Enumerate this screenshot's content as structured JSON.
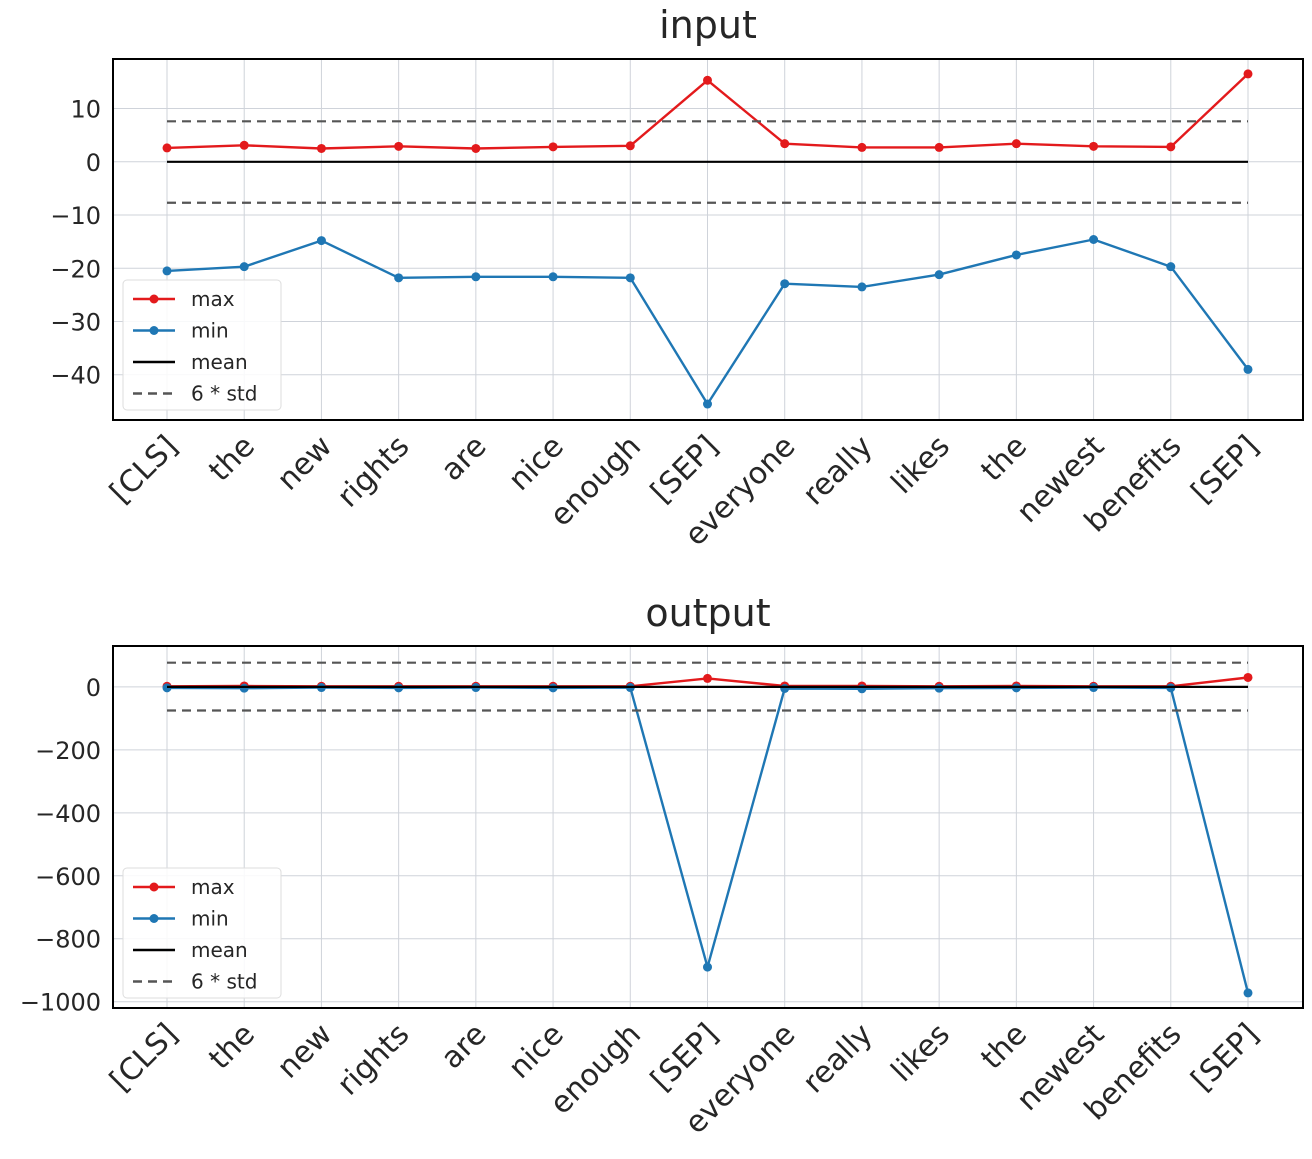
{
  "chart_data": [
    {
      "type": "line",
      "title": "input",
      "categories": [
        "[CLS]",
        "the",
        "new",
        "rights",
        "are",
        "nice",
        "enough",
        "[SEP]",
        "everyone",
        "really",
        "likes",
        "the",
        "newest",
        "benefits",
        "[SEP]"
      ],
      "series": [
        {
          "name": "max",
          "color": "#e31a1c",
          "values": [
            2.6,
            3.1,
            2.5,
            2.9,
            2.5,
            2.8,
            3.0,
            15.3,
            3.4,
            2.7,
            2.7,
            3.4,
            2.9,
            2.8,
            16.5
          ]
        },
        {
          "name": "min",
          "color": "#1f77b4",
          "values": [
            -20.5,
            -19.7,
            -14.8,
            -21.8,
            -21.6,
            -21.6,
            -21.8,
            -45.5,
            -22.9,
            -23.5,
            -21.2,
            -17.5,
            -14.6,
            -19.7,
            -39.0
          ]
        },
        {
          "name": "mean",
          "color": "#000000",
          "values": [
            0,
            0,
            0,
            0,
            0,
            0,
            0,
            0,
            0,
            0,
            0,
            0,
            0,
            0,
            0
          ]
        },
        {
          "name": "6 * std",
          "color": "#555555",
          "dashed": true,
          "band": [
            -7.7,
            7.6
          ]
        }
      ],
      "yticks": [
        10,
        0,
        -10,
        -20,
        -30,
        -40
      ],
      "ytick_labels": [
        "10",
        "0",
        "−10",
        "−20",
        "−30",
        "−40"
      ],
      "ylim": [
        -48.5,
        19.3
      ],
      "xlabel": "",
      "ylabel": "",
      "legend": {
        "position": "lower-left",
        "labels": [
          "max",
          "min",
          "mean",
          "6 * std"
        ]
      }
    },
    {
      "type": "line",
      "title": "output",
      "categories": [
        "[CLS]",
        "the",
        "new",
        "rights",
        "are",
        "nice",
        "enough",
        "[SEP]",
        "everyone",
        "really",
        "likes",
        "the",
        "newest",
        "benefits",
        "[SEP]"
      ],
      "series": [
        {
          "name": "max",
          "color": "#e31a1c",
          "values": [
            2,
            3,
            2,
            2,
            2,
            2,
            2,
            27,
            3,
            3,
            2,
            3,
            2,
            2,
            30
          ]
        },
        {
          "name": "min",
          "color": "#1f77b4",
          "values": [
            -3,
            -4,
            -2,
            -3,
            -2,
            -3,
            -2,
            -890,
            -5,
            -6,
            -4,
            -3,
            -2,
            -3,
            -972
          ]
        },
        {
          "name": "mean",
          "color": "#000000",
          "values": [
            0,
            0,
            0,
            0,
            0,
            0,
            0,
            0,
            0,
            0,
            0,
            0,
            0,
            0,
            0
          ]
        },
        {
          "name": "6 * std",
          "color": "#555555",
          "dashed": true,
          "band": [
            -75,
            77
          ]
        }
      ],
      "yticks": [
        0,
        -200,
        -400,
        -600,
        -800,
        -1000
      ],
      "ytick_labels": [
        "0",
        "−200",
        "−400",
        "−600",
        "−800",
        "−1000"
      ],
      "ylim": [
        -1020,
        130
      ],
      "xlabel": "",
      "ylabel": "",
      "legend": {
        "position": "lower-left",
        "labels": [
          "max",
          "min",
          "mean",
          "6 * std"
        ]
      }
    }
  ]
}
